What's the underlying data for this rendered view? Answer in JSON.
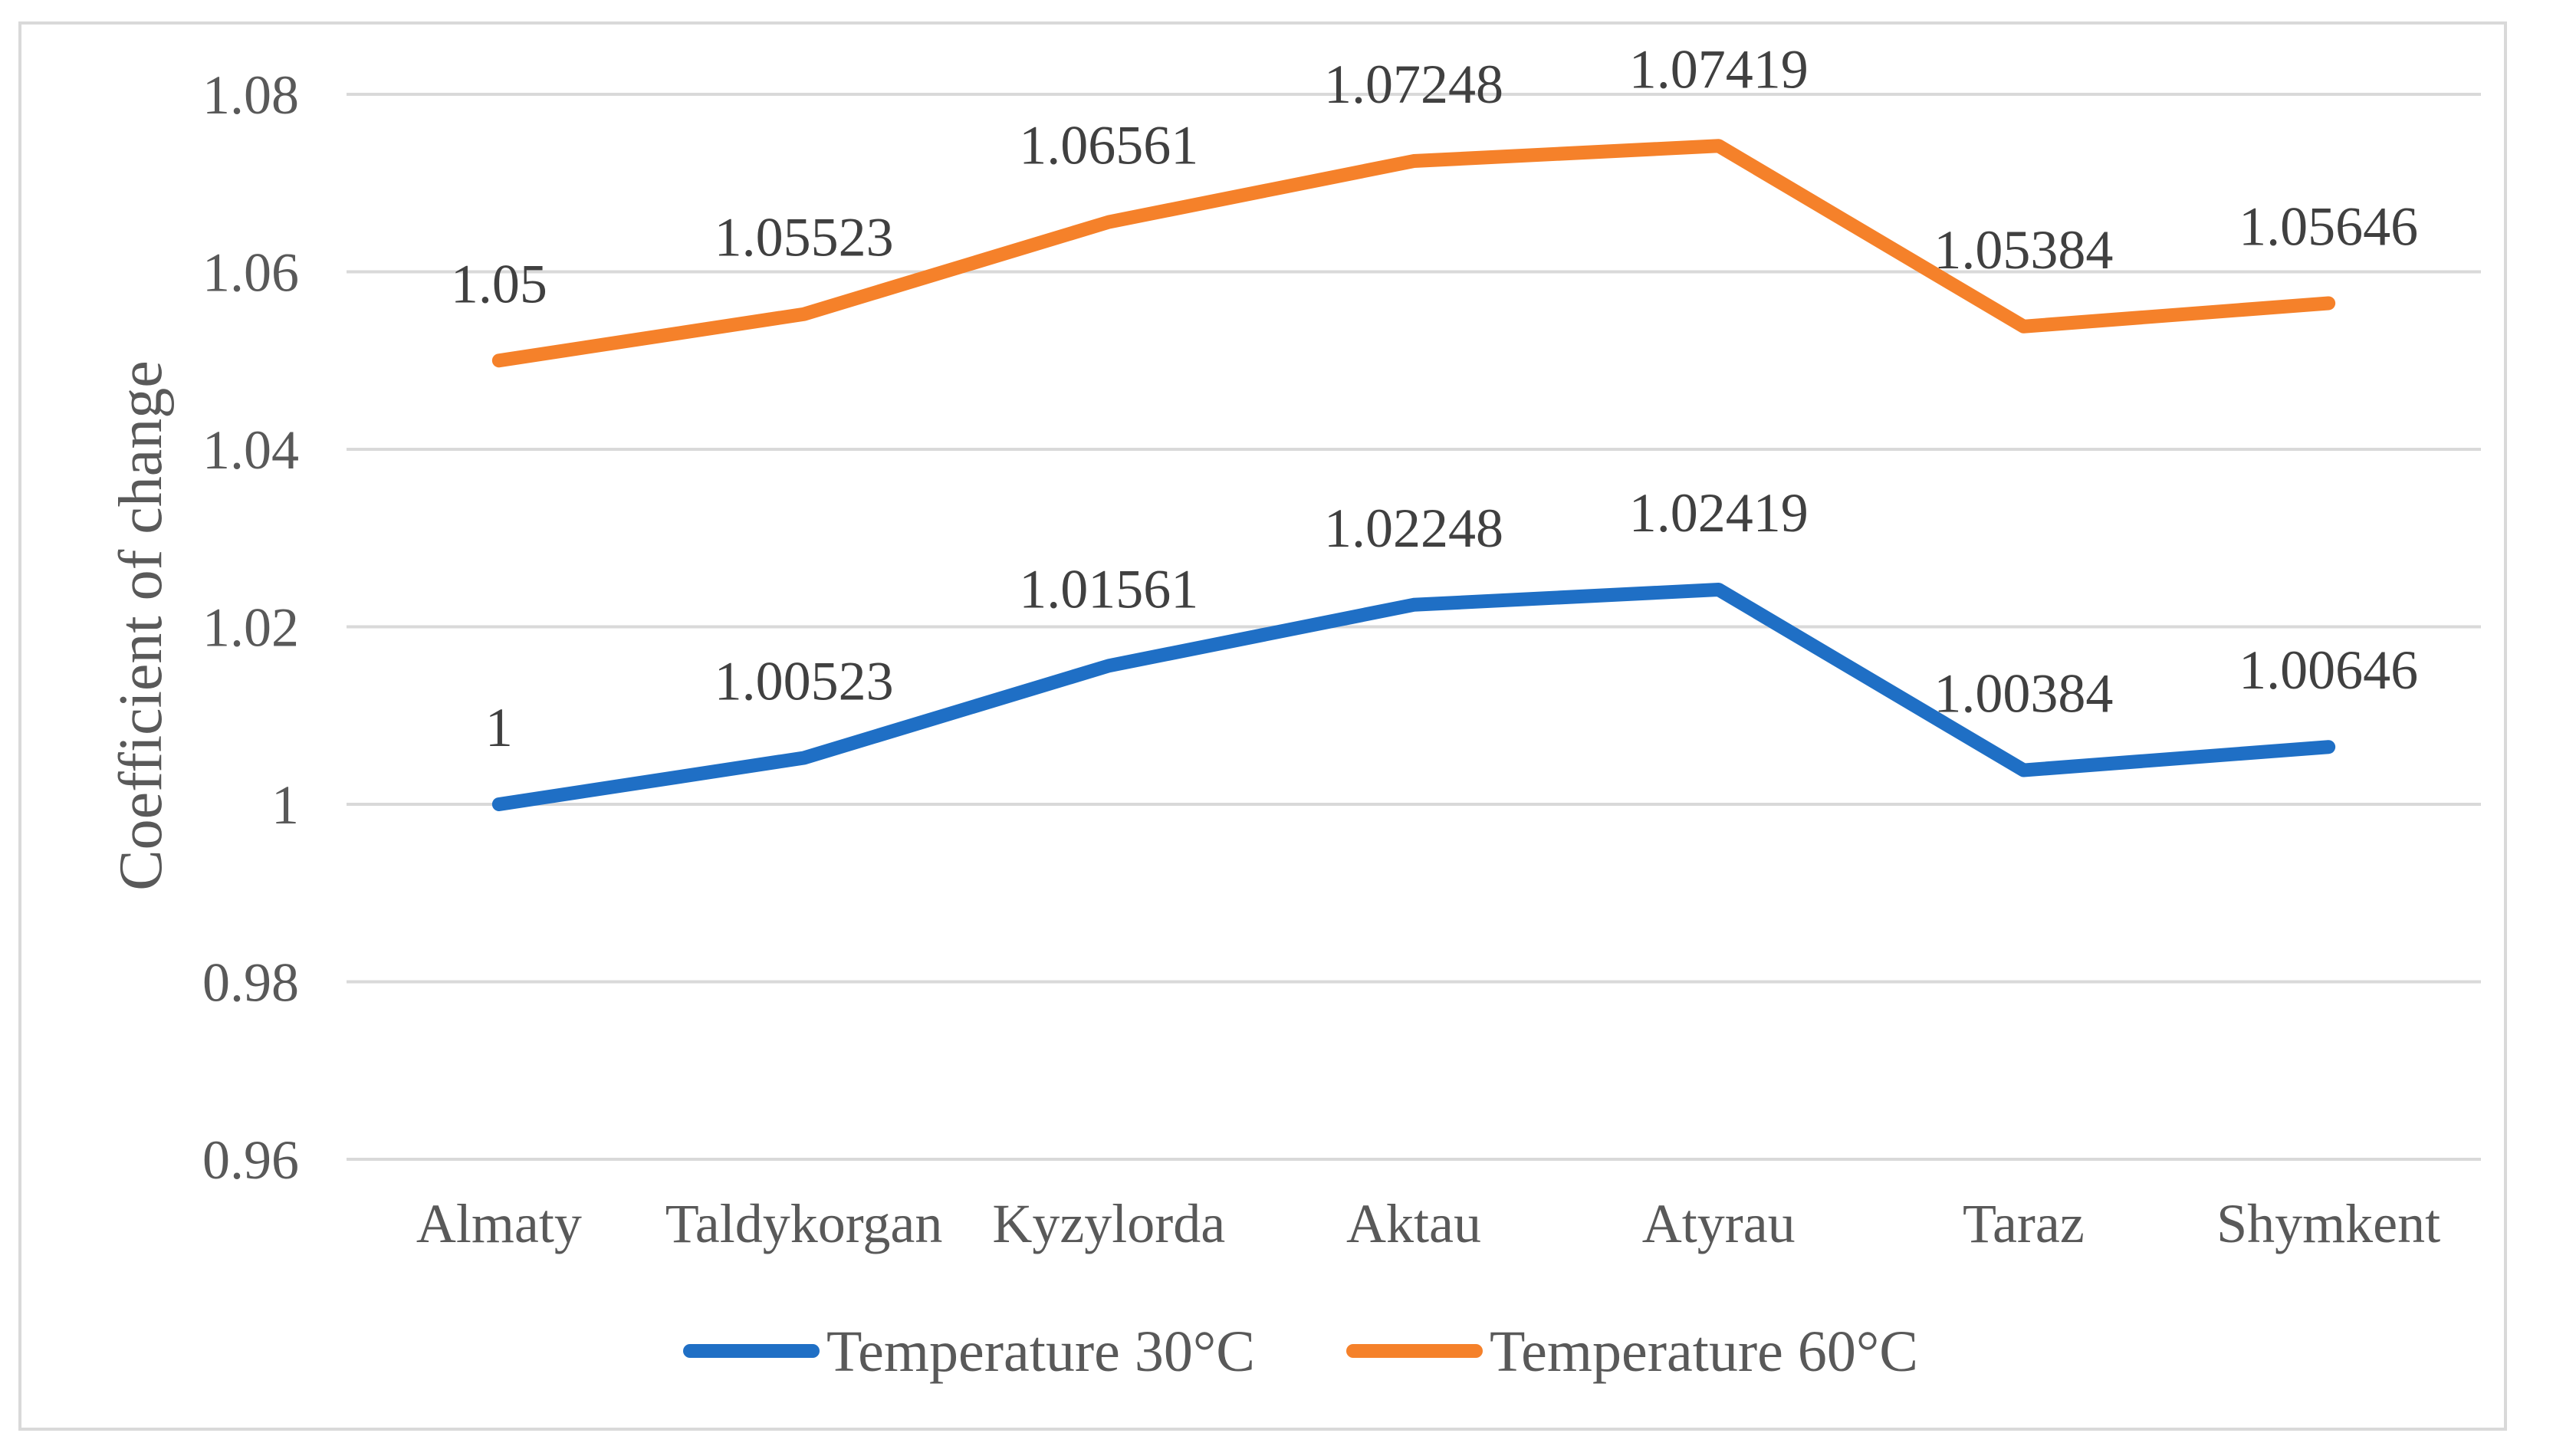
{
  "chart_data": {
    "type": "line",
    "title": "",
    "xlabel": "",
    "ylabel": "Coefficient of change",
    "ylim": [
      0.96,
      1.08
    ],
    "yticks": [
      0.96,
      0.98,
      1,
      1.02,
      1.04,
      1.06,
      1.08
    ],
    "ytick_labels": [
      "0.96",
      "0.98",
      "1",
      "1.02",
      "1.04",
      "1.06",
      "1.08"
    ],
    "grid": true,
    "legend_position": "bottom",
    "categories": [
      "Almaty",
      "Taldykorgan",
      "Kyzylorda",
      "Aktau",
      "Atyrau",
      "Taraz",
      "Shymkent"
    ],
    "series": [
      {
        "name": "Temperature 30°C",
        "color": "#1f6fc5",
        "values": [
          1,
          1.00523,
          1.01561,
          1.02248,
          1.02419,
          1.00384,
          1.00646
        ],
        "labels": [
          "1",
          "1.00523",
          "1.01561",
          "1.02248",
          "1.02419",
          "1.00384",
          "1.00646"
        ]
      },
      {
        "name": "Temperature 60°C",
        "color": "#f5812a",
        "values": [
          1.05,
          1.05523,
          1.06561,
          1.07248,
          1.07419,
          1.05384,
          1.05646
        ],
        "labels": [
          "1.05",
          "1.05523",
          "1.06561",
          "1.07248",
          "1.07419",
          "1.05384",
          "1.05646"
        ]
      }
    ]
  }
}
